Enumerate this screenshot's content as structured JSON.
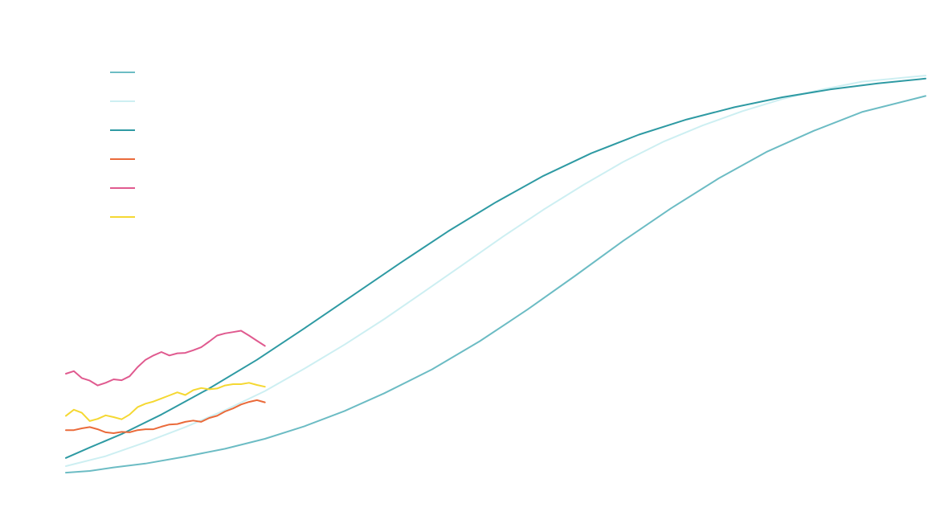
{
  "chart_data": {
    "type": "line",
    "title": "",
    "xlabel": "",
    "ylabel": "",
    "grid": false,
    "legend": "top-left",
    "xlim": [
      0,
      108
    ],
    "ylim": [
      0,
      100
    ],
    "series": [
      {
        "color": "#6cbcc4",
        "x": [
          0,
          3,
          6,
          10,
          15,
          20,
          25,
          30,
          35,
          40,
          46,
          52,
          58,
          64,
          70,
          76,
          82,
          88,
          94,
          100,
          108
        ],
        "values": [
          2.2,
          2.6,
          3.4,
          4.3,
          5.9,
          7.7,
          10.0,
          12.9,
          16.4,
          20.5,
          26.0,
          32.5,
          39.8,
          47.6,
          55.6,
          63.1,
          70.0,
          76.1,
          81.0,
          85.3,
          89.0
        ]
      },
      {
        "color": "#cdeff2",
        "x": [
          0,
          5,
          10,
          15,
          20,
          25,
          30,
          35,
          40,
          45,
          50,
          55,
          60,
          65,
          70,
          75,
          80,
          85,
          90,
          95,
          100,
          108
        ],
        "values": [
          3.7,
          6.0,
          9.2,
          12.7,
          16.6,
          21.0,
          26.2,
          31.7,
          37.6,
          43.9,
          50.3,
          56.7,
          62.8,
          68.5,
          73.8,
          78.4,
          82.2,
          85.5,
          88.3,
          90.5,
          92.3,
          93.7
        ]
      },
      {
        "color": "#2e9aa3",
        "x": [
          0,
          3,
          7,
          12,
          18,
          24,
          30,
          36,
          42,
          48,
          54,
          60,
          66,
          72,
          78,
          84,
          90,
          96,
          102,
          108
        ],
        "values": [
          5.6,
          8.0,
          11.1,
          15.6,
          21.6,
          28.2,
          35.5,
          43.0,
          50.5,
          57.8,
          64.5,
          70.6,
          75.8,
          80.1,
          83.6,
          86.4,
          88.7,
          90.5,
          91.9,
          93.0
        ]
      },
      {
        "color": "#ea6a3a",
        "x": [
          0,
          1,
          2,
          3,
          4,
          5,
          6,
          7,
          8,
          9,
          10,
          11,
          12,
          13,
          14,
          15,
          16,
          17,
          18,
          19,
          20,
          21,
          22,
          23,
          24,
          25
        ],
        "values": [
          12.0,
          12.0,
          12.4,
          12.7,
          12.2,
          11.5,
          11.3,
          11.6,
          11.5,
          12.0,
          12.2,
          12.2,
          12.8,
          13.3,
          13.4,
          13.9,
          14.2,
          13.9,
          14.8,
          15.3,
          16.3,
          17.0,
          17.9,
          18.5,
          18.9,
          18.4
        ]
      },
      {
        "color": "#e05a8f",
        "x": [
          0,
          1,
          2,
          3,
          4,
          5,
          6,
          7,
          8,
          9,
          10,
          11,
          12,
          13,
          14,
          15,
          16,
          17,
          18,
          19,
          20,
          21,
          22,
          23,
          24,
          25
        ],
        "values": [
          25.0,
          25.6,
          24.0,
          23.4,
          22.3,
          22.9,
          23.7,
          23.5,
          24.4,
          26.5,
          28.2,
          29.2,
          30.0,
          29.2,
          29.7,
          29.8,
          30.4,
          31.1,
          32.4,
          33.8,
          34.3,
          34.6,
          34.9,
          33.8,
          32.6,
          31.4
        ]
      },
      {
        "color": "#f5d832",
        "x": [
          0,
          1,
          2,
          3,
          4,
          5,
          6,
          7,
          8,
          9,
          10,
          11,
          12,
          13,
          14,
          15,
          16,
          17,
          18,
          19,
          20,
          21,
          22,
          23,
          24,
          25
        ],
        "values": [
          15.3,
          16.7,
          16.0,
          14.1,
          14.6,
          15.4,
          15.0,
          14.5,
          15.6,
          17.3,
          18.1,
          18.6,
          19.3,
          20.0,
          20.7,
          20.1,
          21.2,
          21.7,
          21.4,
          21.6,
          22.3,
          22.6,
          22.6,
          22.9,
          22.4,
          22.0
        ]
      }
    ]
  }
}
